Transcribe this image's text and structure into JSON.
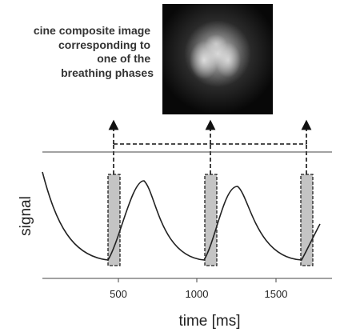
{
  "annotation": [
    "cine composite image",
    "corresponding to",
    "one of the",
    "breathing phases"
  ],
  "y_label": "signal",
  "x_label": "time [ms]",
  "xticks": [
    500,
    1000,
    1500
  ]
}
